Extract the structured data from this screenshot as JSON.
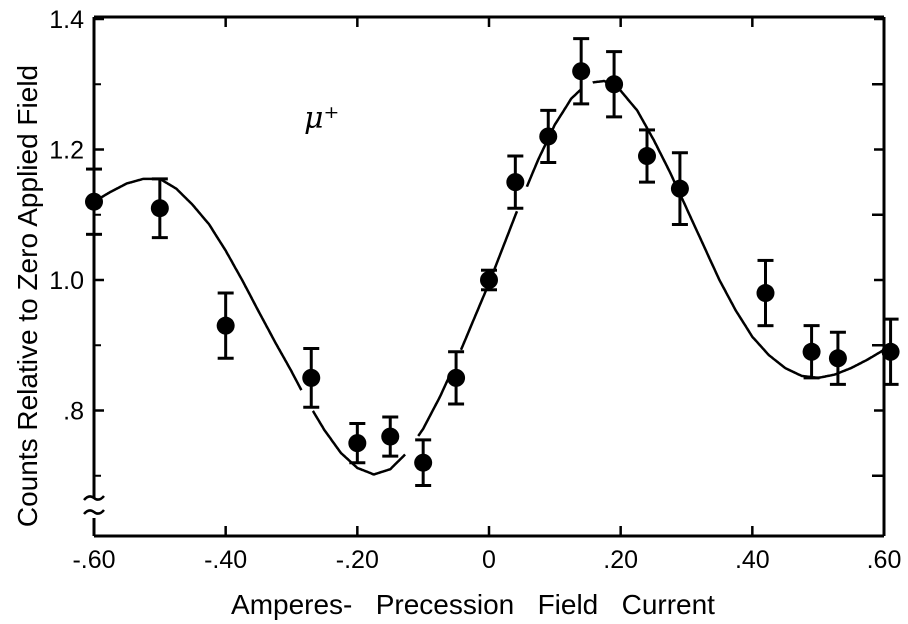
{
  "chart_data": {
    "type": "scatter",
    "title": "",
    "xlabel": "Amperes-   Precession   Field   Current",
    "ylabel": "Counts Relative to Zero Applied Field",
    "annotation": "μ⁺",
    "xlim": [
      -0.6,
      0.6
    ],
    "ylim": [
      0.66,
      1.4
    ],
    "grid": false,
    "legend": "none",
    "x_ticks": [
      -0.6,
      -0.4,
      -0.2,
      0,
      0.2,
      0.4,
      0.6
    ],
    "x_tick_labels": [
      "-.60",
      "-.40",
      "-.20",
      "0",
      ".20",
      ".40",
      ".60"
    ],
    "y_ticks": [
      1.4,
      1.2,
      1.0,
      0.8
    ],
    "y_tick_labels": [
      "1.4",
      "1.2",
      "1.0",
      ".8"
    ],
    "y_minor_ticks": [
      1.3,
      1.1,
      0.9,
      0.7
    ],
    "series": [
      {
        "kind": "points-with-error-bars",
        "x": [
          -0.6,
          -0.5,
          -0.4,
          -0.27,
          -0.2,
          -0.15,
          -0.1,
          -0.05,
          0.0,
          0.04,
          0.09,
          0.14,
          0.19,
          0.24,
          0.29,
          0.42,
          0.49,
          0.53,
          0.61
        ],
        "y": [
          1.12,
          1.11,
          0.93,
          0.85,
          0.75,
          0.76,
          0.72,
          0.85,
          1.0,
          1.15,
          1.22,
          1.32,
          1.3,
          1.19,
          1.14,
          0.98,
          0.89,
          0.88,
          0.89
        ],
        "err": [
          0.05,
          0.045,
          0.05,
          0.045,
          0.03,
          0.03,
          0.035,
          0.04,
          0.015,
          0.04,
          0.04,
          0.05,
          0.05,
          0.04,
          0.055,
          0.05,
          0.04,
          0.04,
          0.05
        ]
      },
      {
        "kind": "fit-curve",
        "x": [
          -0.6,
          -0.575,
          -0.55,
          -0.525,
          -0.5,
          -0.475,
          -0.45,
          -0.425,
          -0.4,
          -0.375,
          -0.35,
          -0.325,
          -0.3,
          -0.275,
          -0.25,
          -0.225,
          -0.2,
          -0.175,
          -0.15,
          -0.125,
          -0.1,
          -0.075,
          -0.05,
          -0.025,
          0.0,
          0.025,
          0.05,
          0.075,
          0.1,
          0.125,
          0.15,
          0.175,
          0.2,
          0.225,
          0.25,
          0.275,
          0.3,
          0.325,
          0.35,
          0.375,
          0.4,
          0.425,
          0.45,
          0.475,
          0.5,
          0.525,
          0.55,
          0.575,
          0.6
        ],
        "y": [
          1.12,
          1.135,
          1.148,
          1.155,
          1.155,
          1.14,
          1.115,
          1.085,
          1.045,
          1.0,
          0.952,
          0.905,
          0.86,
          0.812,
          0.77,
          0.735,
          0.712,
          0.702,
          0.71,
          0.735,
          0.772,
          0.82,
          0.875,
          0.935,
          0.995,
          1.06,
          1.125,
          1.185,
          1.238,
          1.278,
          1.302,
          1.305,
          1.29,
          1.26,
          1.215,
          1.165,
          1.11,
          1.055,
          1.0,
          0.953,
          0.913,
          0.885,
          0.865,
          0.853,
          0.85,
          0.855,
          0.865,
          0.878,
          0.893
        ],
        "gaps_x": [
          [
            -0.285,
            -0.27
          ],
          [
            -0.125,
            -0.11
          ],
          [
            -0.055,
            -0.045
          ],
          [
            0.045,
            0.055
          ],
          [
            0.14,
            0.155
          ]
        ]
      }
    ]
  }
}
